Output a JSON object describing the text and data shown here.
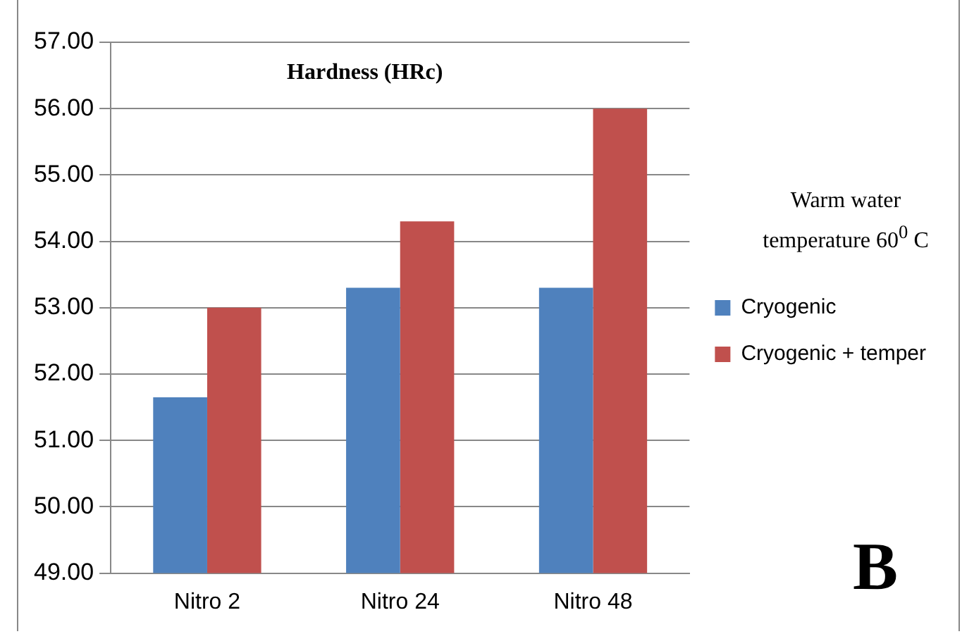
{
  "chart_data": {
    "type": "bar",
    "title": "Hardness (HRc)",
    "categories": [
      "Nitro 2",
      "Nitro 24",
      "Nitro 48"
    ],
    "series": [
      {
        "name": "Cryogenic",
        "color": "#4f81bd",
        "values": [
          51.65,
          53.3,
          53.3
        ]
      },
      {
        "name": "Cryogenic + temper",
        "color": "#c0504d",
        "values": [
          53.0,
          54.3,
          56.0
        ]
      }
    ],
    "ylim": [
      49,
      57
    ],
    "yticks": [
      {
        "value": 49,
        "label": "49.00"
      },
      {
        "value": 50,
        "label": "50.00"
      },
      {
        "value": 51,
        "label": "51.00"
      },
      {
        "value": 52,
        "label": "52.00"
      },
      {
        "value": 53,
        "label": "53.00"
      },
      {
        "value": 54,
        "label": "54.00"
      },
      {
        "value": 55,
        "label": "55.00"
      },
      {
        "value": 56,
        "label": "56.00"
      },
      {
        "value": 57,
        "label": "57.00"
      }
    ],
    "grid": "y",
    "legend": "right",
    "annotations": [
      "Warm water temperature 60$^{0}$ C",
      "B"
    ]
  }
}
